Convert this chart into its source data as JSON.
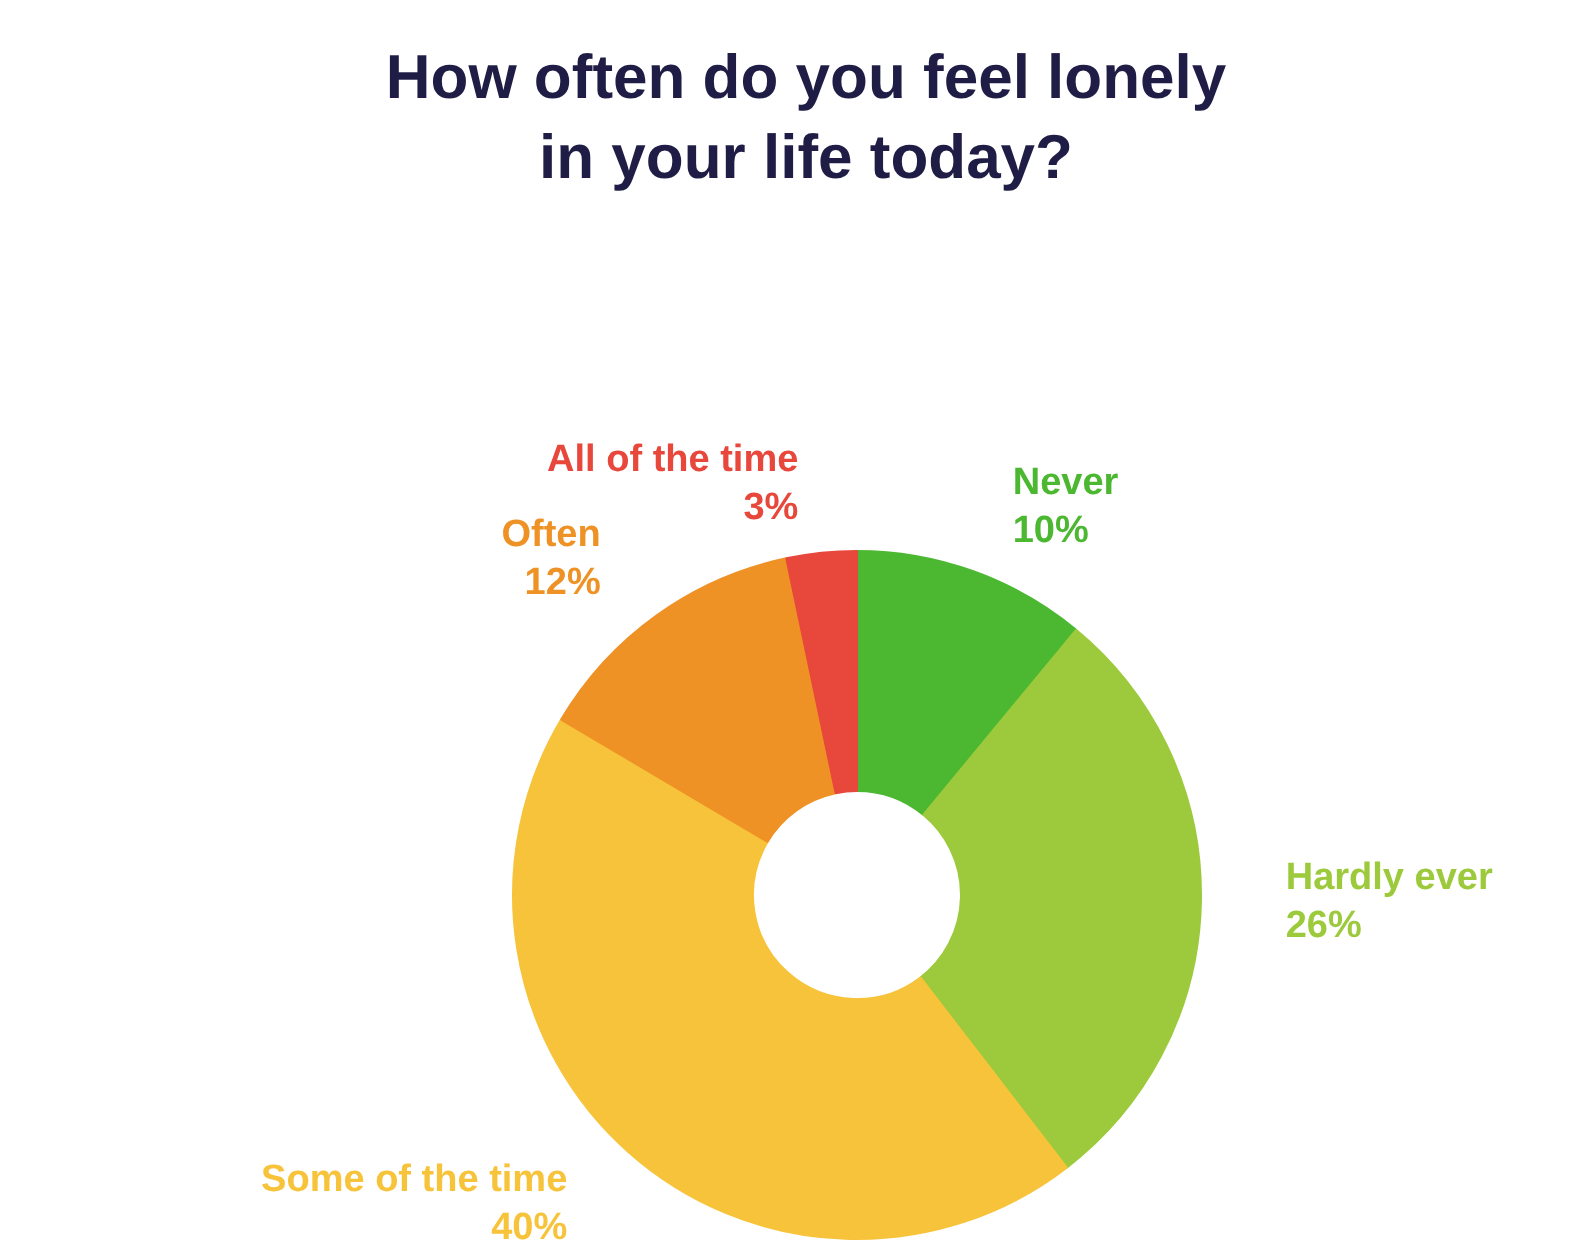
{
  "chart_data": {
    "type": "donut",
    "title": "How often do you feel lonely in your life today?",
    "categories": [
      "Never",
      "Hardly ever",
      "Some of the time",
      "Often",
      "All of the time"
    ],
    "values": [
      10,
      26,
      40,
      12,
      3
    ],
    "value_labels": [
      "10%",
      "26%",
      "40%",
      "12%",
      "3%"
    ],
    "colors": [
      "#4cb832",
      "#9dca3c",
      "#f7c33a",
      "#ef9226",
      "#e8473c"
    ]
  }
}
